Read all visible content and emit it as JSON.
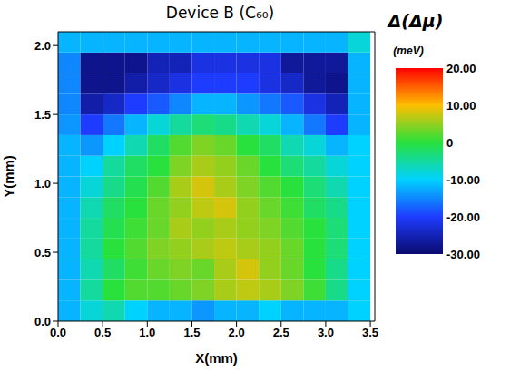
{
  "chart_data": {
    "type": "heatmap",
    "title": "Device B (C₆₀)",
    "x_label": "X(mm)",
    "y_label": "Y(mm)",
    "xlim": [
      0,
      3.55
    ],
    "ylim": [
      0,
      2.1
    ],
    "xticks": [
      {
        "value": 0,
        "label": "0.0"
      },
      {
        "value": 0.5,
        "label": "0.5"
      },
      {
        "value": 1,
        "label": "1.0"
      },
      {
        "value": 1.5,
        "label": "1.5"
      },
      {
        "value": 2,
        "label": "2.0"
      },
      {
        "value": 2.5,
        "label": "2.5"
      },
      {
        "value": 3,
        "label": "3.0"
      },
      {
        "value": 3.5,
        "label": "3.5"
      }
    ],
    "yticks": [
      {
        "value": 0,
        "label": "0.0"
      },
      {
        "value": 0.5,
        "label": "0.5"
      },
      {
        "value": 1,
        "label": "1.0"
      },
      {
        "value": 1.5,
        "label": "1.5"
      },
      {
        "value": 2,
        "label": "2.0"
      }
    ],
    "cells": {
      "x_bins": [
        0,
        0.25,
        0.5,
        0.75,
        1,
        1.25,
        1.5,
        1.75,
        2,
        2.25,
        2.5,
        2.75,
        3,
        3.25,
        3.5
      ],
      "y_bins": [
        0,
        0.15,
        0.3,
        0.45,
        0.6,
        0.75,
        0.9,
        1.05,
        1.2,
        1.35,
        1.5,
        1.65,
        1.8,
        1.95,
        2.1
      ],
      "values": [
        [
          -12,
          -8,
          -6,
          -10,
          -12,
          -12,
          -14,
          -12,
          -12,
          -10,
          -12,
          -12,
          -12,
          -10
        ],
        [
          -12,
          -5,
          0,
          2,
          2,
          3,
          4,
          6,
          7,
          6,
          4,
          1,
          -4,
          -10
        ],
        [
          -12,
          -6,
          -2,
          1,
          3,
          4,
          3,
          6,
          8,
          5,
          3,
          0,
          -4,
          -10
        ],
        [
          -12,
          -5,
          0,
          2,
          4,
          5,
          6,
          7,
          6,
          5,
          3,
          0,
          -3,
          -10
        ],
        [
          -12,
          -5,
          -1,
          1,
          3,
          6,
          5,
          6,
          5,
          4,
          2,
          0,
          -3,
          -10
        ],
        [
          -12,
          -6,
          -2,
          0,
          3,
          5,
          7,
          8,
          5,
          3,
          1,
          -2,
          -4,
          -10
        ],
        [
          -12,
          -8,
          -4,
          -1,
          2,
          6,
          8,
          6,
          4,
          2,
          0,
          -3,
          -6,
          -10
        ],
        [
          -12,
          -10,
          -5,
          -2,
          0,
          4,
          6,
          5,
          3,
          0,
          -3,
          -5,
          -8,
          -10
        ],
        [
          -12,
          -14,
          -10,
          -6,
          -2,
          2,
          4,
          3,
          0,
          -2,
          -6,
          -8,
          -12,
          -10
        ],
        [
          -14,
          -20,
          -16,
          -12,
          -8,
          -5,
          -3,
          -4,
          -6,
          -8,
          -12,
          -16,
          -20,
          -12
        ],
        [
          -15,
          -26,
          -24,
          -20,
          -18,
          -15,
          -12,
          -12,
          -14,
          -16,
          -18,
          -22,
          -25,
          -12
        ],
        [
          -15,
          -28,
          -28,
          -26,
          -24,
          -22,
          -20,
          -20,
          -20,
          -22,
          -24,
          -27,
          -28,
          -12
        ],
        [
          -15,
          -28,
          -28,
          -28,
          -25,
          -25,
          -22,
          -22,
          -22,
          -22,
          -27,
          -27,
          -27,
          -12
        ],
        [
          -12,
          -12,
          -12,
          -12,
          -12,
          -12,
          -12,
          -12,
          -12,
          -12,
          -12,
          -12,
          -12,
          -8
        ]
      ]
    },
    "colorbar": {
      "title": "Δ(Δμ)",
      "unit": "(meV)",
      "range": [
        -30,
        20
      ],
      "ticks": [
        {
          "value": 20,
          "label": "20.00"
        },
        {
          "value": 10,
          "label": "10.00"
        },
        0,
        {
          "value": -10,
          "label": "-10.00"
        },
        {
          "value": -20,
          "label": "-20.00"
        },
        {
          "value": -30,
          "label": "-30.00"
        }
      ]
    }
  }
}
